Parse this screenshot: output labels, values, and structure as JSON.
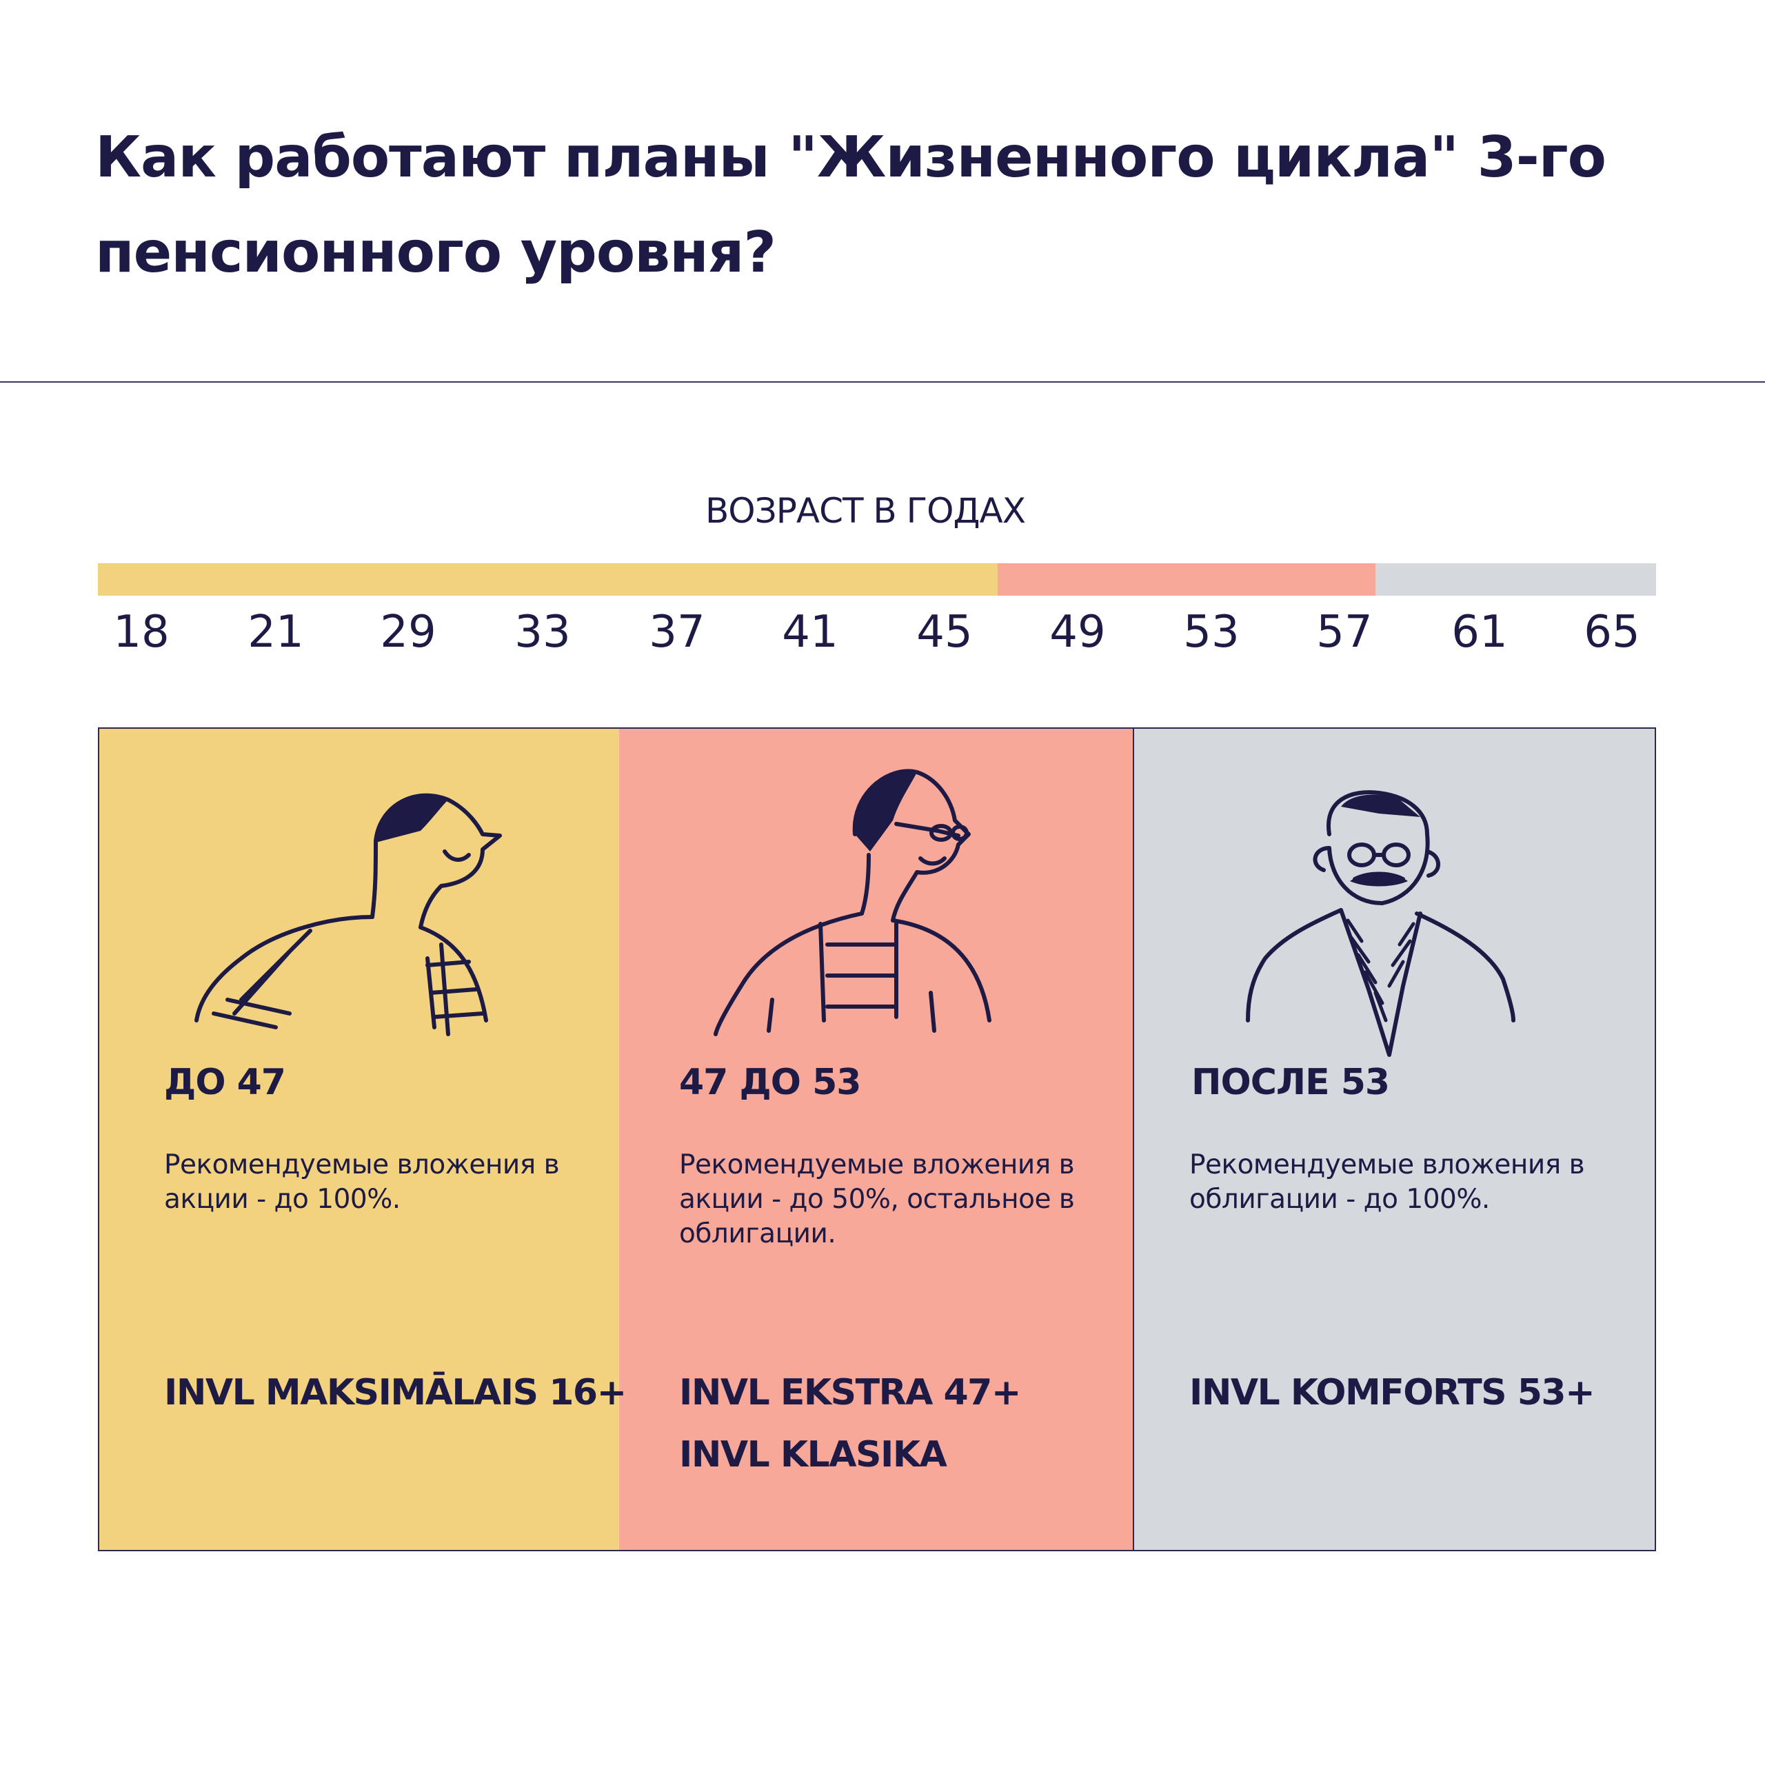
{
  "title": "Как работают планы \"Жизненного цикла\" 3-го пенсионного уровня?",
  "axis_label": "ВОЗРАСТ В ГОДАХ",
  "ticks": [
    "18",
    "21",
    "29",
    "33",
    "37",
    "41",
    "45",
    "49",
    "53",
    "57",
    "61",
    "65"
  ],
  "colors": {
    "yellow": "#f2d27e",
    "pink": "#f7a898",
    "gray": "#d5d8dc",
    "ink": "#1d1b45"
  },
  "panels": [
    {
      "age": "ДО 47",
      "description": "Рекомендуемые вложения в акции - до 100%.",
      "funds": [
        "INVL MAKSIMĀLAIS 16+"
      ],
      "illustration": "young-person-with-backpack-icon"
    },
    {
      "age": "47 ДО 53",
      "description": "Рекомендуемые вложения в акции - до 50%, остальное в облигации.",
      "funds": [
        "INVL EKSTRA 47+",
        "INVL KLASIKA"
      ],
      "illustration": "middle-aged-person-with-glasses-icon"
    },
    {
      "age": "ПОСЛЕ 53",
      "description": "Рекомендуемые вложения в облигации - до 100%.",
      "funds": [
        "INVL KOMFORTS 53+"
      ],
      "illustration": "older-man-with-mustache-icon"
    }
  ]
}
